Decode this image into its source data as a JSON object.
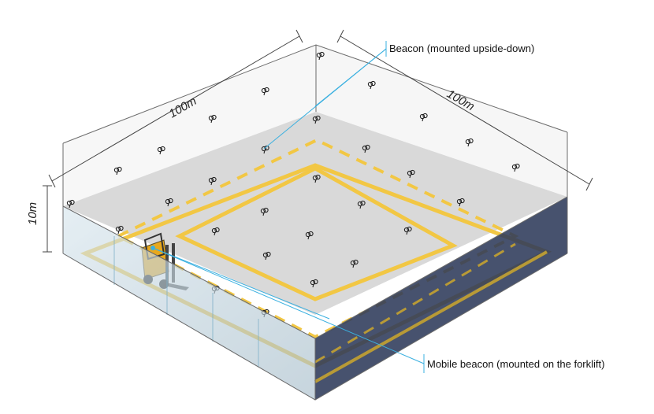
{
  "labels": {
    "beacon": "Beacon (mounted upside-down)",
    "mobile_beacon": "Mobile beacon (mounted on the forklift)",
    "dim_width_left": "100m",
    "dim_width_right": "100m",
    "dim_height": "10m"
  },
  "colors": {
    "left_wall": "#b9cdd9",
    "right_wall": "#2e3a5a",
    "floor": "#d6d6d6",
    "yellow_line": "#f2c744",
    "callout_line": "#3ab0e0",
    "dim_line": "#444444"
  },
  "icons": {
    "beacon": "beacon-icon",
    "forklift": "forklift-icon"
  }
}
